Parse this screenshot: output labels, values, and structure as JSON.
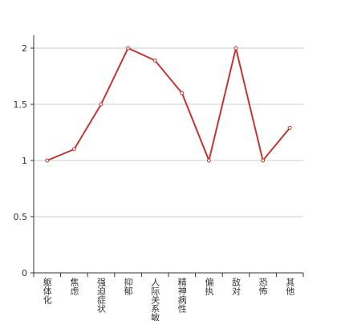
{
  "chart_data": {
    "type": "line",
    "categories": [
      "躯体化",
      "焦虑",
      "强迫症状",
      "抑郁",
      "人际关系敏感",
      "精神病性",
      "偏执",
      "敌对",
      "恐怖",
      "其他"
    ],
    "series": [
      {
        "color": "#c23531",
        "values": [
          1,
          1.1,
          1.5,
          2,
          1.89,
          1.6,
          1,
          2,
          1,
          1.29
        ]
      }
    ],
    "ylim": [
      0,
      2
    ],
    "yticks": [
      0,
      0.5,
      1,
      1.5,
      2
    ],
    "grid": true
  }
}
